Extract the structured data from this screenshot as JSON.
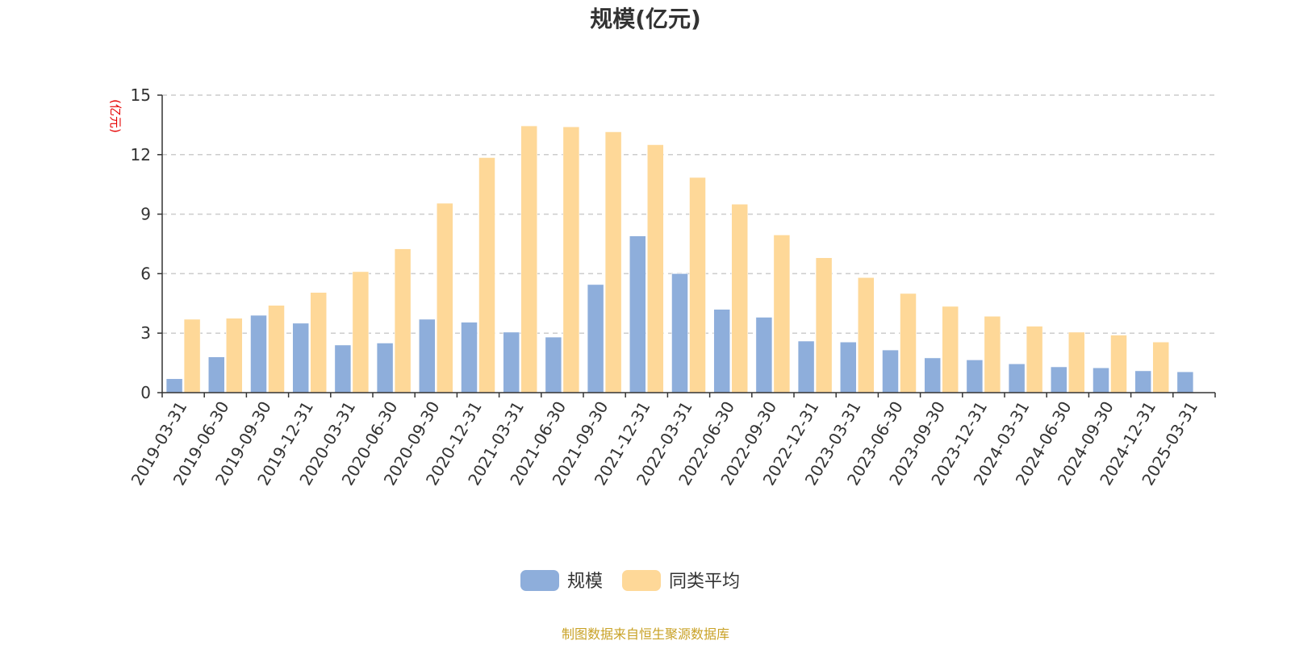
{
  "chart_data": {
    "type": "bar",
    "title": "规模(亿元)",
    "ylabel": "(亿元)",
    "ylim": [
      0,
      15
    ],
    "yticks": [
      0,
      3,
      6,
      9,
      12,
      15
    ],
    "grid": true,
    "legend_placement": "bottom",
    "categories": [
      "2019-03-31",
      "2019-06-30",
      "2019-09-30",
      "2019-12-31",
      "2020-03-31",
      "2020-06-30",
      "2020-09-30",
      "2020-12-31",
      "2021-03-31",
      "2021-06-30",
      "2021-09-30",
      "2021-12-31",
      "2022-03-31",
      "2022-06-30",
      "2022-09-30",
      "2022-12-31",
      "2023-03-31",
      "2023-06-30",
      "2023-09-30",
      "2023-12-31",
      "2024-03-31",
      "2024-06-30",
      "2024-09-30",
      "2024-12-31",
      "2025-03-31"
    ],
    "series": [
      {
        "name": "规模",
        "color": "#8eaedb",
        "values": [
          0.7,
          1.8,
          3.9,
          3.5,
          2.4,
          2.5,
          3.7,
          3.55,
          3.05,
          2.8,
          5.45,
          7.9,
          6.0,
          4.2,
          3.8,
          2.6,
          2.55,
          2.15,
          1.75,
          1.65,
          1.45,
          1.3,
          1.25,
          1.1,
          1.05
        ]
      },
      {
        "name": "同类平均",
        "color": "#fed898",
        "values": [
          3.7,
          3.75,
          4.4,
          5.05,
          6.1,
          7.25,
          9.55,
          11.85,
          13.45,
          13.4,
          13.15,
          12.5,
          10.85,
          9.5,
          7.95,
          6.8,
          5.8,
          5.0,
          4.35,
          3.85,
          3.35,
          3.05,
          2.9,
          2.55,
          null
        ]
      }
    ]
  },
  "source_note": "制图数据来自恒生聚源数据库"
}
